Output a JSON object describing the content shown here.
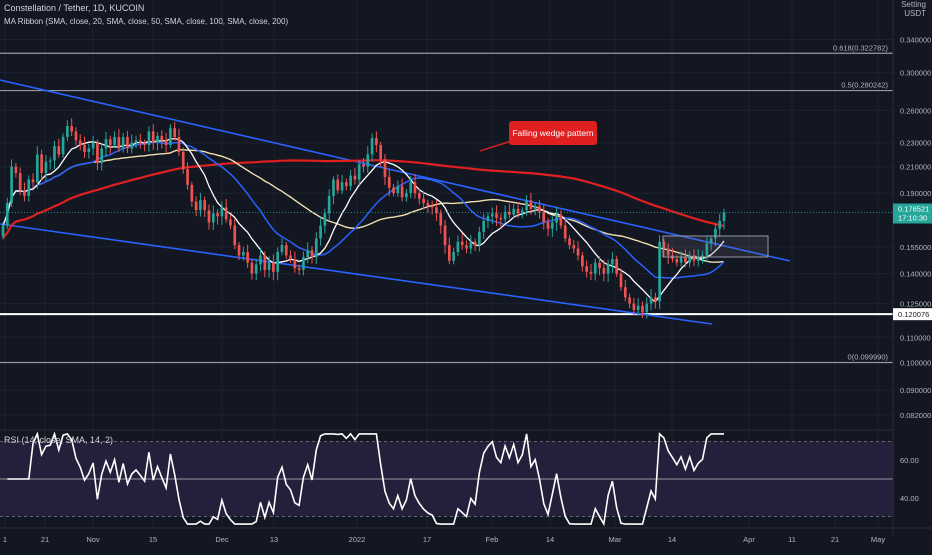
{
  "header": {
    "symbol_line": "Constellation / Tether, 1D, KUCOIN",
    "ma_ribbon_line": "MA Ribbon (SMA, close, 20, SMA, close, 50, SMA, close, 100, SMA, close, 200)",
    "currency_top": "Setting",
    "currency": "USDT"
  },
  "colors": {
    "background": "#131722",
    "up_candle": "#26a69a",
    "down_candle": "#ef5350",
    "ma20": "#ffffff",
    "ma50": "#2962ff",
    "ma100": "#f0e0b0",
    "ma200": "#e02020",
    "wedge": "#2962ff",
    "fib_line": "#9598a1",
    "support": "#ffffff",
    "rsi_line": "#ffffff",
    "rsi_band": "#241f3a",
    "annotation_bg": "#e02020"
  },
  "chart_data": [
    {
      "type": "candlestick",
      "title": "Constellation / Tether, 1D, KUCOIN",
      "y_scale": "log",
      "ylim": [
        0.078,
        0.395
      ],
      "y_ticks": [
        "0.340000",
        "0.300000",
        "0.260000",
        "0.230000",
        "0.210000",
        "0.190000",
        "0.155000",
        "0.140000",
        "0.125000",
        "0.110000",
        "0.100000",
        "0.090000",
        "0.082000"
      ],
      "x_ticks": [
        "1",
        "21",
        "Nov",
        "15",
        "Dec",
        "13",
        "2022",
        "17",
        "Feb",
        "14",
        "Mar",
        "14",
        "Apr",
        "11",
        "21",
        "May"
      ],
      "last_price": "0.176521",
      "countdown": "17:10:30",
      "fib_levels": [
        {
          "label": "0.618(0.322782)",
          "price": 0.322782
        },
        {
          "label": "0.5(0.280242)",
          "price": 0.280242
        },
        {
          "label": "0(0.099990)",
          "price": 0.09999
        }
      ],
      "support_level": {
        "label": "0.120076",
        "price": 0.120076
      },
      "annotations": [
        {
          "text": "Falling wedge pattern"
        }
      ],
      "close_series": [
        0.168,
        0.183,
        0.21,
        0.205,
        0.192,
        0.188,
        0.2,
        0.198,
        0.22,
        0.205,
        0.214,
        0.215,
        0.227,
        0.22,
        0.235,
        0.245,
        0.24,
        0.232,
        0.228,
        0.222,
        0.225,
        0.23,
        0.213,
        0.225,
        0.233,
        0.228,
        0.235,
        0.225,
        0.235,
        0.225,
        0.23,
        0.232,
        0.23,
        0.228,
        0.24,
        0.23,
        0.236,
        0.232,
        0.228,
        0.243,
        0.235,
        0.222,
        0.208,
        0.196,
        0.184,
        0.178,
        0.185,
        0.178,
        0.17,
        0.176,
        0.174,
        0.18,
        0.172,
        0.168,
        0.156,
        0.15,
        0.152,
        0.146,
        0.14,
        0.145,
        0.15,
        0.142,
        0.146,
        0.141,
        0.152,
        0.156,
        0.15,
        0.148,
        0.143,
        0.142,
        0.149,
        0.153,
        0.149,
        0.16,
        0.168,
        0.176,
        0.188,
        0.2,
        0.192,
        0.198,
        0.195,
        0.203,
        0.2,
        0.212,
        0.21,
        0.22,
        0.234,
        0.228,
        0.216,
        0.202,
        0.194,
        0.19,
        0.195,
        0.187,
        0.19,
        0.198,
        0.19,
        0.186,
        0.183,
        0.181,
        0.18,
        0.176,
        0.168,
        0.156,
        0.147,
        0.152,
        0.158,
        0.156,
        0.154,
        0.158,
        0.156,
        0.164,
        0.171,
        0.174,
        0.176,
        0.173,
        0.172,
        0.177,
        0.175,
        0.179,
        0.176,
        0.178,
        0.185,
        0.179,
        0.181,
        0.177,
        0.17,
        0.166,
        0.17,
        0.175,
        0.168,
        0.16,
        0.156,
        0.154,
        0.15,
        0.144,
        0.141,
        0.14,
        0.146,
        0.143,
        0.14,
        0.145,
        0.148,
        0.14,
        0.133,
        0.128,
        0.125,
        0.122,
        0.124,
        0.121,
        0.125,
        0.128,
        0.126,
        0.158,
        0.154,
        0.15,
        0.148,
        0.146,
        0.149,
        0.146,
        0.15,
        0.147,
        0.149,
        0.15,
        0.157,
        0.16,
        0.166,
        0.171,
        0.1765
      ],
      "indicators": [
        "MA 20",
        "MA 50",
        "MA 100",
        "MA 200"
      ]
    },
    {
      "type": "line",
      "title": "RSI (14, close, SMA, 14, 2)",
      "ylim": [
        25,
        75
      ],
      "y_ticks": [
        "60.00",
        "40.00"
      ],
      "band": [
        30,
        70
      ],
      "midline": 50
    }
  ]
}
